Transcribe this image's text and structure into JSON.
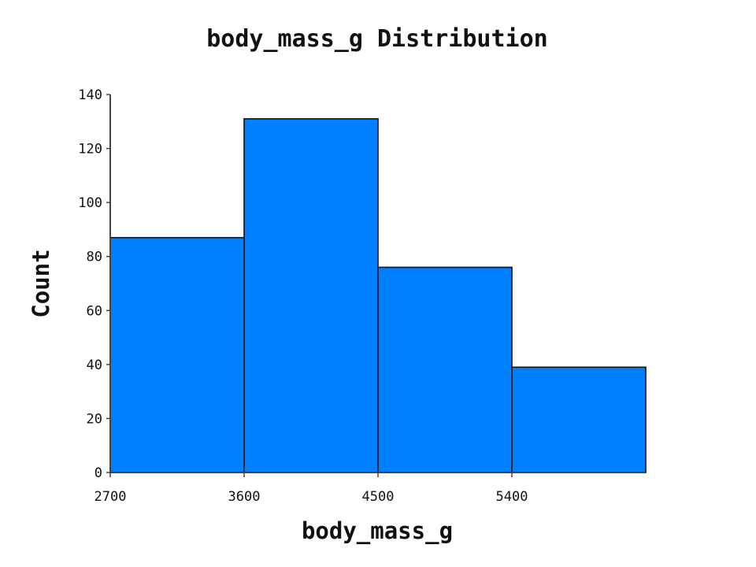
{
  "chart_data": {
    "type": "bar",
    "title": "body_mass_g Distribution",
    "xlabel": "body_mass_g",
    "ylabel": "Count",
    "bins": [
      {
        "start": 2700,
        "end": 3600,
        "count": 87
      },
      {
        "start": 3600,
        "end": 4500,
        "count": 131
      },
      {
        "start": 4500,
        "end": 5400,
        "count": 76
      },
      {
        "start": 5400,
        "end": 6300,
        "count": 39
      }
    ],
    "xticks": [
      2700,
      3600,
      4500,
      5400
    ],
    "yticks": [
      0,
      20,
      40,
      60,
      80,
      100,
      120,
      140
    ],
    "xlim": [
      2700,
      6300
    ],
    "ylim": [
      0,
      140
    ],
    "bar_color": "#0080ff",
    "grid": false
  }
}
